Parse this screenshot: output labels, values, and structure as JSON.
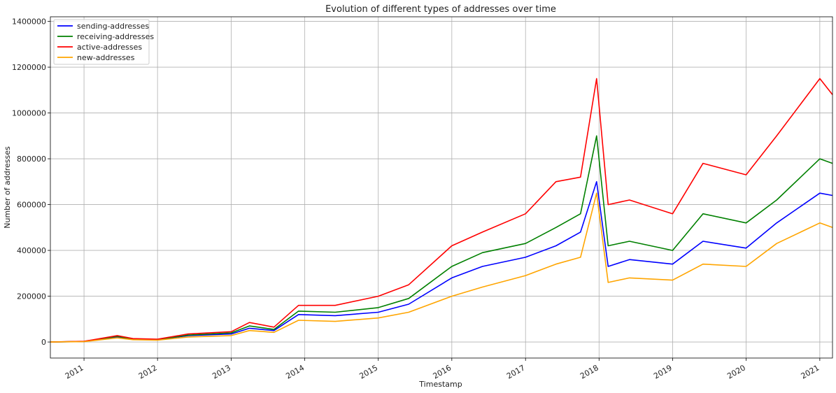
{
  "chart_data": {
    "type": "line",
    "title": "Evolution of different types of addresses over time",
    "xlabel": "Timestamp",
    "ylabel": "Number of addresses",
    "xlim": [
      "2010-07-18",
      "2021-03-05"
    ],
    "ylim": [
      -70000,
      1420000
    ],
    "x_ticks": [
      "2011",
      "2012",
      "2013",
      "2014",
      "2015",
      "2016",
      "2017",
      "2018",
      "2019",
      "2020",
      "2021"
    ],
    "y_ticks": [
      0,
      200000,
      400000,
      600000,
      800000,
      1000000,
      1200000,
      1400000
    ],
    "grid": true,
    "legend": "top-left",
    "series": [
      {
        "name": "sending-addresses",
        "color": "#0000ff",
        "x": [
          "2010-07-18",
          "2011-01-01",
          "2011-06-15",
          "2011-09-01",
          "2012-01-01",
          "2012-06-01",
          "2013-01-01",
          "2013-04-01",
          "2013-08-01",
          "2013-12-01",
          "2014-06-01",
          "2015-01-01",
          "2015-06-01",
          "2016-01-01",
          "2016-06-01",
          "2017-01-01",
          "2017-06-01",
          "2017-10-01",
          "2017-12-20",
          "2018-02-15",
          "2018-06-01",
          "2019-01-01",
          "2019-06-01",
          "2020-01-01",
          "2020-06-01",
          "2021-01-01",
          "2021-03-05"
        ],
        "values": [
          0,
          2000,
          22000,
          12000,
          10000,
          28000,
          35000,
          60000,
          50000,
          120000,
          115000,
          130000,
          165000,
          280000,
          330000,
          370000,
          420000,
          480000,
          700000,
          330000,
          360000,
          340000,
          440000,
          410000,
          520000,
          650000,
          640000
        ]
      },
      {
        "name": "receiving-addresses",
        "color": "#008000",
        "x": [
          "2010-07-18",
          "2011-01-01",
          "2011-06-15",
          "2011-09-01",
          "2012-01-01",
          "2012-06-01",
          "2013-01-01",
          "2013-04-01",
          "2013-08-01",
          "2013-12-01",
          "2014-06-01",
          "2015-01-01",
          "2015-06-01",
          "2016-01-01",
          "2016-06-01",
          "2017-01-01",
          "2017-06-01",
          "2017-10-01",
          "2017-12-20",
          "2018-02-15",
          "2018-06-01",
          "2019-01-01",
          "2019-06-01",
          "2020-01-01",
          "2020-06-01",
          "2021-01-01",
          "2021-03-05"
        ],
        "values": [
          0,
          2500,
          25000,
          13000,
          11000,
          30000,
          40000,
          70000,
          55000,
          135000,
          130000,
          150000,
          190000,
          330000,
          390000,
          430000,
          500000,
          560000,
          900000,
          420000,
          440000,
          400000,
          560000,
          520000,
          620000,
          800000,
          780000
        ]
      },
      {
        "name": "active-addresses",
        "color": "#ff0000",
        "x": [
          "2010-07-18",
          "2011-01-01",
          "2011-06-15",
          "2011-09-01",
          "2012-01-01",
          "2012-06-01",
          "2013-01-01",
          "2013-04-01",
          "2013-08-01",
          "2013-12-01",
          "2014-06-01",
          "2015-01-01",
          "2015-06-01",
          "2016-01-01",
          "2016-06-01",
          "2017-01-01",
          "2017-06-01",
          "2017-10-01",
          "2017-12-20",
          "2018-02-15",
          "2018-06-01",
          "2019-01-01",
          "2019-06-01",
          "2020-01-01",
          "2020-06-01",
          "2021-01-01",
          "2021-03-05"
        ],
        "values": [
          0,
          3000,
          28000,
          15000,
          12000,
          35000,
          45000,
          85000,
          65000,
          160000,
          160000,
          200000,
          250000,
          420000,
          480000,
          560000,
          700000,
          720000,
          1150000,
          600000,
          620000,
          560000,
          780000,
          730000,
          900000,
          1150000,
          1080000
        ]
      },
      {
        "name": "new-addresses",
        "color": "#ffa500",
        "x": [
          "2010-07-18",
          "2011-01-01",
          "2011-06-15",
          "2011-09-01",
          "2012-01-01",
          "2012-06-01",
          "2013-01-01",
          "2013-04-01",
          "2013-08-01",
          "2013-12-01",
          "2014-06-01",
          "2015-01-01",
          "2015-06-01",
          "2016-01-01",
          "2016-06-01",
          "2017-01-01",
          "2017-06-01",
          "2017-10-01",
          "2017-12-20",
          "2018-02-15",
          "2018-06-01",
          "2019-01-01",
          "2019-06-01",
          "2020-01-01",
          "2020-06-01",
          "2021-01-01",
          "2021-03-05"
        ],
        "values": [
          0,
          1500,
          18000,
          10000,
          8000,
          22000,
          28000,
          50000,
          42000,
          95000,
          90000,
          105000,
          130000,
          200000,
          240000,
          290000,
          340000,
          370000,
          650000,
          260000,
          280000,
          270000,
          340000,
          330000,
          430000,
          520000,
          500000
        ]
      }
    ]
  }
}
